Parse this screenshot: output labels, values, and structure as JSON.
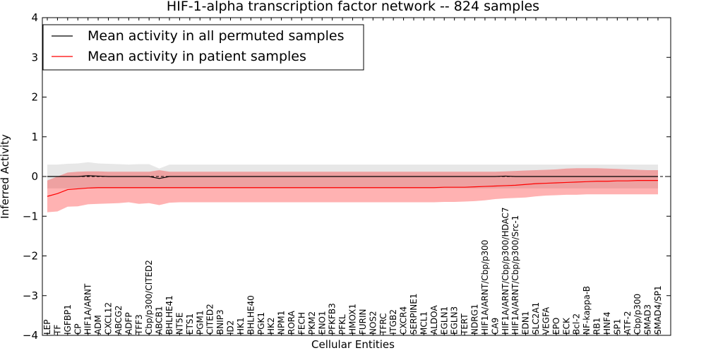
{
  "chart_data": {
    "type": "line",
    "title": "HIF-1-alpha transcription factor network -- 824 samples",
    "xlabel": "Cellular Entities",
    "ylabel": "Inferred Activity",
    "ylim": [
      -4,
      4
    ],
    "yticks": [
      -4,
      -3,
      -2,
      -1,
      0,
      1,
      2,
      3,
      4
    ],
    "ytick_labels": [
      "−4",
      "−3",
      "−2",
      "−1",
      "0",
      "1",
      "2",
      "3",
      "4"
    ],
    "grid": false,
    "legend_position": "top-left",
    "reference_line": 0,
    "categories": [
      "LEP",
      "TF",
      "IGFBP1",
      "CP",
      "HIF1A/ARNT",
      "ADM",
      "CXCL12",
      "ABCG2",
      "ADFP",
      "TFF3",
      "Cbp/p300/CITED2",
      "ABCB1",
      "BHLHE41",
      "NT5E",
      "ETS1",
      "PGM1",
      "CITED2",
      "BNIP3",
      "ID2",
      "HK1",
      "BHLHE40",
      "PGK1",
      "HK2",
      "NPM1",
      "RORA",
      "FECH",
      "PKM2",
      "ENO1",
      "PFKFB3",
      "PFKL",
      "HMOX1",
      "FURIN",
      "NOS2",
      "TFRC",
      "ITGB2",
      "CXCR4",
      "SERPINE1",
      "MCL1",
      "ALDOA",
      "EGLN1",
      "EGLN3",
      "TERT",
      "NDRG1",
      "HIF1A/ARNT/Cbp/p300",
      "CA9",
      "HIF1A/ARNT/Cbp/p300/HDAC7",
      "HIF1A/ARNT/Cbp/p300/Src-1",
      "EDN1",
      "SLC2A1",
      "VEGFA",
      "EPO",
      "ECK",
      "Bcl-2",
      "NF-kappa-B",
      "RB1",
      "HNF4",
      "SP1",
      "ATF-2",
      "Cbp/p300",
      "SMAD3",
      "SMAD4/SP1"
    ],
    "series": [
      {
        "name": "Mean activity in all permuted samples",
        "color": "#000000",
        "values": [
          0.0,
          0.0,
          0.0,
          0.0,
          0.02,
          0.01,
          0.0,
          0.0,
          0.0,
          0.0,
          0.0,
          -0.05,
          0.0,
          0.0,
          0.0,
          0.0,
          0.0,
          0.0,
          0.0,
          0.0,
          0.0,
          0.0,
          0.0,
          0.0,
          0.0,
          0.0,
          0.0,
          0.0,
          0.0,
          0.0,
          0.0,
          0.0,
          0.0,
          0.0,
          0.0,
          0.0,
          0.0,
          0.0,
          0.0,
          0.0,
          0.0,
          0.0,
          0.0,
          0.0,
          0.0,
          0.01,
          0.0,
          0.0,
          0.0,
          0.0,
          0.0,
          0.0,
          0.0,
          0.0,
          0.0,
          0.0,
          0.0,
          0.0,
          0.0,
          0.0,
          0.0
        ],
        "lower": [
          -0.3,
          -0.3,
          -0.3,
          -0.3,
          -0.3,
          -0.3,
          -0.3,
          -0.3,
          -0.3,
          -0.3,
          -0.3,
          -0.3,
          -0.3,
          -0.3,
          -0.3,
          -0.3,
          -0.3,
          -0.3,
          -0.3,
          -0.3,
          -0.3,
          -0.3,
          -0.3,
          -0.3,
          -0.3,
          -0.3,
          -0.3,
          -0.3,
          -0.3,
          -0.3,
          -0.3,
          -0.3,
          -0.3,
          -0.3,
          -0.3,
          -0.3,
          -0.3,
          -0.3,
          -0.3,
          -0.3,
          -0.3,
          -0.3,
          -0.3,
          -0.3,
          -0.3,
          -0.3,
          -0.3,
          -0.3,
          -0.3,
          -0.3,
          -0.3,
          -0.3,
          -0.3,
          -0.3,
          -0.3,
          -0.3,
          -0.3,
          -0.3,
          -0.3,
          -0.3,
          -0.3
        ],
        "upper": [
          0.3,
          0.3,
          0.32,
          0.33,
          0.36,
          0.33,
          0.32,
          0.31,
          0.3,
          0.31,
          0.31,
          0.2,
          0.3,
          0.3,
          0.3,
          0.3,
          0.3,
          0.3,
          0.3,
          0.3,
          0.3,
          0.3,
          0.3,
          0.3,
          0.3,
          0.3,
          0.3,
          0.3,
          0.3,
          0.3,
          0.3,
          0.3,
          0.3,
          0.3,
          0.3,
          0.3,
          0.3,
          0.3,
          0.3,
          0.3,
          0.3,
          0.3,
          0.3,
          0.3,
          0.3,
          0.3,
          0.3,
          0.3,
          0.3,
          0.3,
          0.3,
          0.3,
          0.3,
          0.3,
          0.3,
          0.3,
          0.3,
          0.3,
          0.3,
          0.3,
          0.3
        ]
      },
      {
        "name": "Mean activity in patient samples",
        "color": "#ff0000",
        "values": [
          -0.5,
          -0.43,
          -0.33,
          -0.31,
          -0.29,
          -0.28,
          -0.28,
          -0.28,
          -0.28,
          -0.28,
          -0.28,
          -0.28,
          -0.28,
          -0.28,
          -0.28,
          -0.28,
          -0.28,
          -0.28,
          -0.28,
          -0.28,
          -0.28,
          -0.28,
          -0.28,
          -0.28,
          -0.28,
          -0.28,
          -0.28,
          -0.28,
          -0.28,
          -0.28,
          -0.28,
          -0.28,
          -0.28,
          -0.28,
          -0.28,
          -0.28,
          -0.28,
          -0.28,
          -0.28,
          -0.27,
          -0.27,
          -0.27,
          -0.26,
          -0.25,
          -0.24,
          -0.23,
          -0.22,
          -0.2,
          -0.18,
          -0.17,
          -0.16,
          -0.15,
          -0.14,
          -0.13,
          -0.12,
          -0.12,
          -0.11,
          -0.11,
          -0.1,
          -0.1,
          -0.1
        ],
        "lower": [
          -0.9,
          -0.88,
          -0.76,
          -0.75,
          -0.7,
          -0.69,
          -0.68,
          -0.67,
          -0.65,
          -0.69,
          -0.67,
          -0.72,
          -0.66,
          -0.65,
          -0.65,
          -0.65,
          -0.65,
          -0.65,
          -0.65,
          -0.65,
          -0.65,
          -0.65,
          -0.65,
          -0.65,
          -0.65,
          -0.65,
          -0.65,
          -0.65,
          -0.65,
          -0.65,
          -0.65,
          -0.65,
          -0.65,
          -0.65,
          -0.65,
          -0.65,
          -0.65,
          -0.65,
          -0.65,
          -0.64,
          -0.64,
          -0.63,
          -0.62,
          -0.6,
          -0.57,
          -0.55,
          -0.54,
          -0.53,
          -0.5,
          -0.48,
          -0.47,
          -0.46,
          -0.46,
          -0.45,
          -0.45,
          -0.45,
          -0.45,
          -0.45,
          -0.45,
          -0.45,
          -0.45
        ],
        "upper": [
          -0.1,
          0.0,
          0.1,
          0.12,
          0.13,
          0.13,
          0.12,
          0.12,
          0.12,
          0.12,
          0.12,
          0.16,
          0.12,
          0.12,
          0.12,
          0.12,
          0.12,
          0.12,
          0.12,
          0.12,
          0.12,
          0.12,
          0.12,
          0.12,
          0.12,
          0.12,
          0.12,
          0.12,
          0.12,
          0.12,
          0.12,
          0.12,
          0.12,
          0.12,
          0.12,
          0.12,
          0.12,
          0.12,
          0.12,
          0.12,
          0.12,
          0.12,
          0.12,
          0.12,
          0.12,
          0.13,
          0.14,
          0.15,
          0.16,
          0.17,
          0.18,
          0.2,
          0.21,
          0.21,
          0.21,
          0.2,
          0.19,
          0.18,
          0.17,
          0.16,
          0.16
        ]
      }
    ]
  }
}
